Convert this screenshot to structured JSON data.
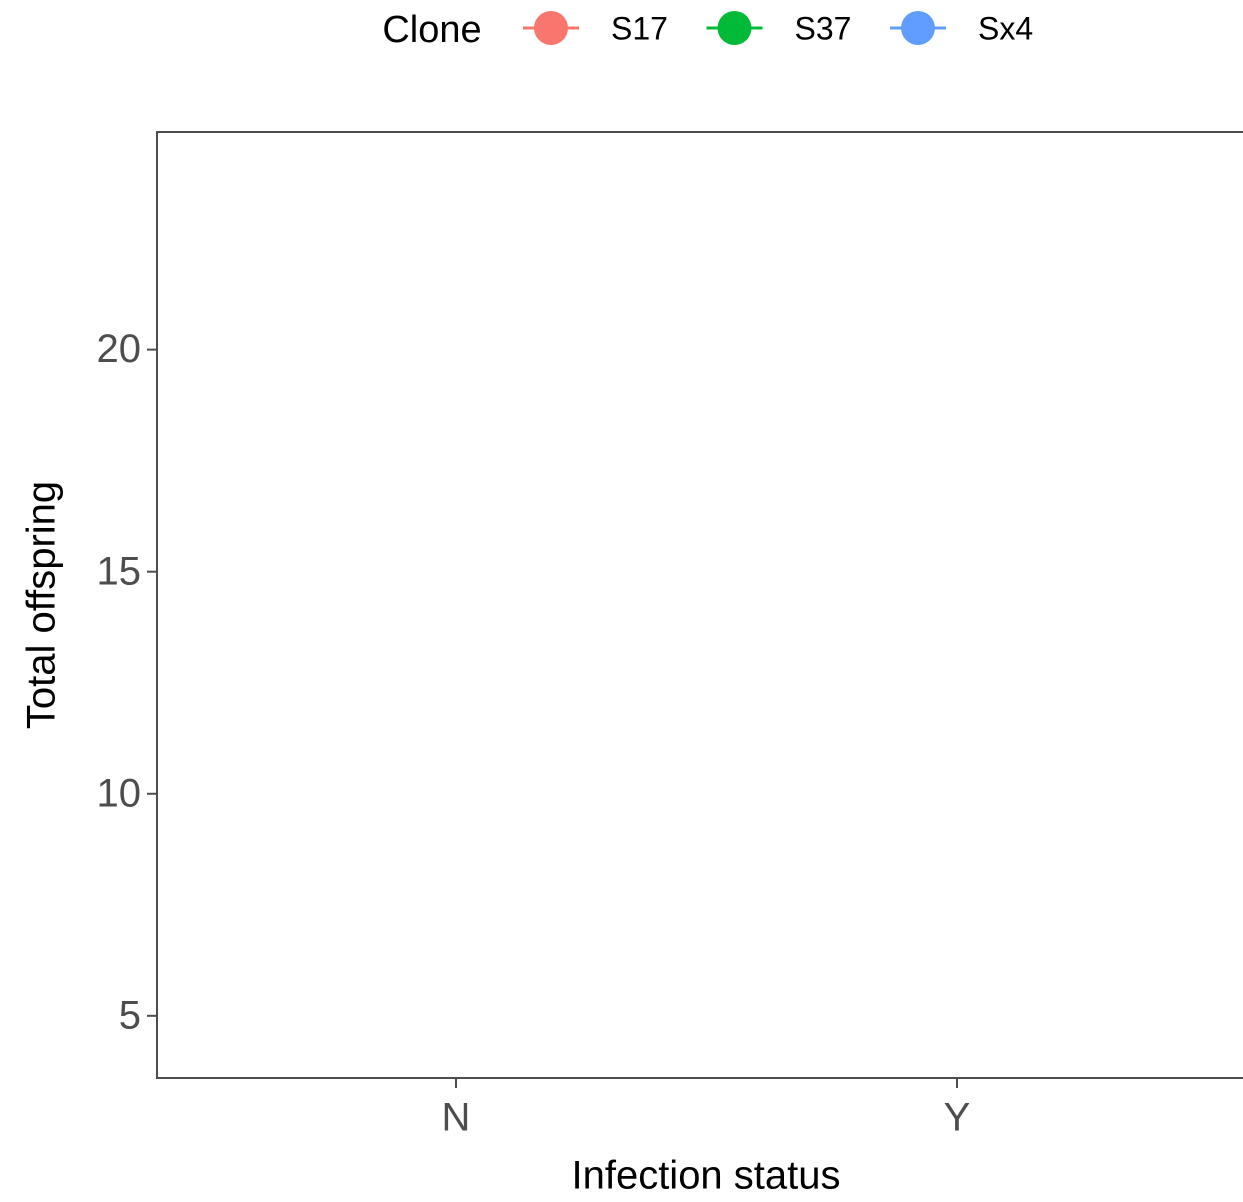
{
  "chart_data": {
    "type": "line",
    "categories": [
      "N",
      "Y"
    ],
    "series": [
      {
        "name": "S17",
        "color": "#f8766d",
        "values": [
          null,
          null
        ]
      },
      {
        "name": "S37",
        "color": "#00ba38",
        "values": [
          null,
          null
        ]
      },
      {
        "name": "Sx4",
        "color": "#619cff",
        "values": [
          null,
          null
        ]
      }
    ],
    "xlabel": "Infection status",
    "ylabel": "Total offspring",
    "legend_title": "Clone",
    "legend": "top",
    "ylim": [
      3.6,
      24.9
    ],
    "yticks": [
      5,
      10,
      15,
      20
    ],
    "grid": false
  }
}
